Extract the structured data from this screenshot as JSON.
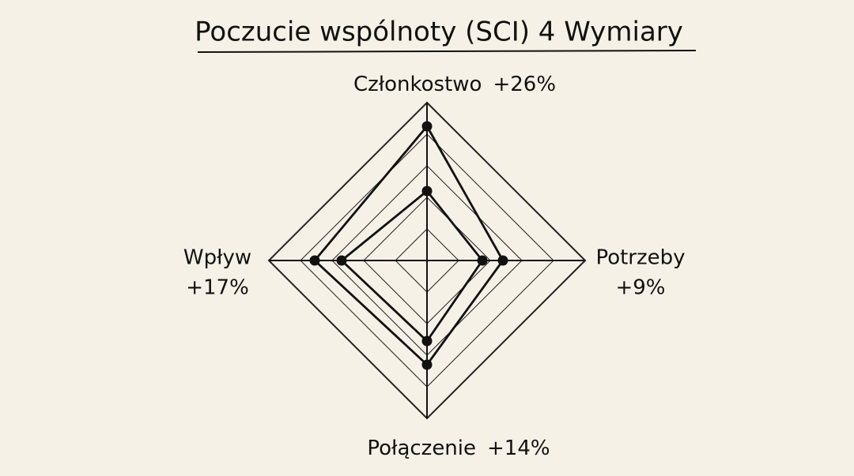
{
  "chart_data": {
    "type": "radar",
    "title": "Poczucie wspólnoty (SCI) 4 Wymiary",
    "categories": [
      "Członkostwo",
      "Potrzeby",
      "Połączenie",
      "Wpływ"
    ],
    "change_labels": [
      "+26%",
      "+9%",
      "+14%",
      "+17%"
    ],
    "series": [
      {
        "color": "#111111",
        "values": [
          2.2,
          1.75,
          2.55,
          2.7
        ]
      },
      {
        "color": "#111111",
        "values": [
          4.25,
          2.4,
          3.3,
          3.55
        ]
      }
    ],
    "rlim": [
      0,
      5
    ],
    "rticks": [
      1,
      2,
      3,
      4,
      5
    ],
    "grid": true
  }
}
